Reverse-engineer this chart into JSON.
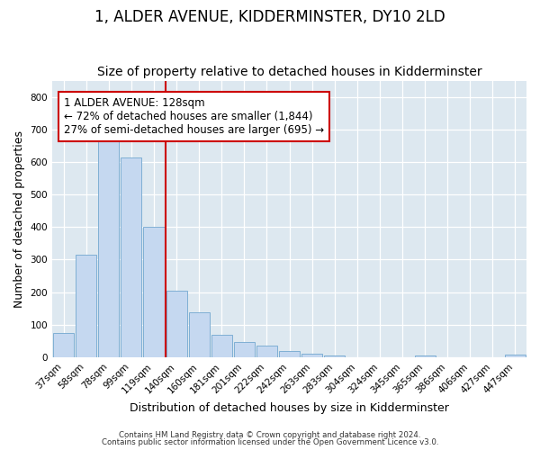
{
  "title": "1, ALDER AVENUE, KIDDERMINSTER, DY10 2LD",
  "subtitle": "Size of property relative to detached houses in Kidderminster",
  "xlabel": "Distribution of detached houses by size in Kidderminster",
  "ylabel": "Number of detached properties",
  "categories": [
    "37sqm",
    "58sqm",
    "78sqm",
    "99sqm",
    "119sqm",
    "140sqm",
    "160sqm",
    "181sqm",
    "201sqm",
    "222sqm",
    "242sqm",
    "263sqm",
    "283sqm",
    "304sqm",
    "324sqm",
    "345sqm",
    "365sqm",
    "386sqm",
    "406sqm",
    "427sqm",
    "447sqm"
  ],
  "values": [
    75,
    315,
    665,
    615,
    400,
    205,
    138,
    70,
    47,
    35,
    20,
    12,
    5,
    0,
    0,
    0,
    5,
    0,
    0,
    0,
    8
  ],
  "bar_color": "#c5d8f0",
  "bar_edge_color": "#7fafd4",
  "vline_color": "#cc0000",
  "vline_x_index": 4.5,
  "annotation_text": "1 ALDER AVENUE: 128sqm\n← 72% of detached houses are smaller (1,844)\n27% of semi-detached houses are larger (695) →",
  "annotation_box_facecolor": "#ffffff",
  "annotation_box_edgecolor": "#cc0000",
  "ylim": [
    0,
    850
  ],
  "yticks": [
    0,
    100,
    200,
    300,
    400,
    500,
    600,
    700,
    800
  ],
  "plot_bg_color": "#dde8f0",
  "fig_bg_color": "#ffffff",
  "footer_line1": "Contains HM Land Registry data © Crown copyright and database right 2024.",
  "footer_line2": "Contains public sector information licensed under the Open Government Licence v3.0.",
  "title_fontsize": 12,
  "subtitle_fontsize": 10,
  "tick_fontsize": 7.5,
  "axis_label_fontsize": 9,
  "annotation_fontsize": 8.5
}
